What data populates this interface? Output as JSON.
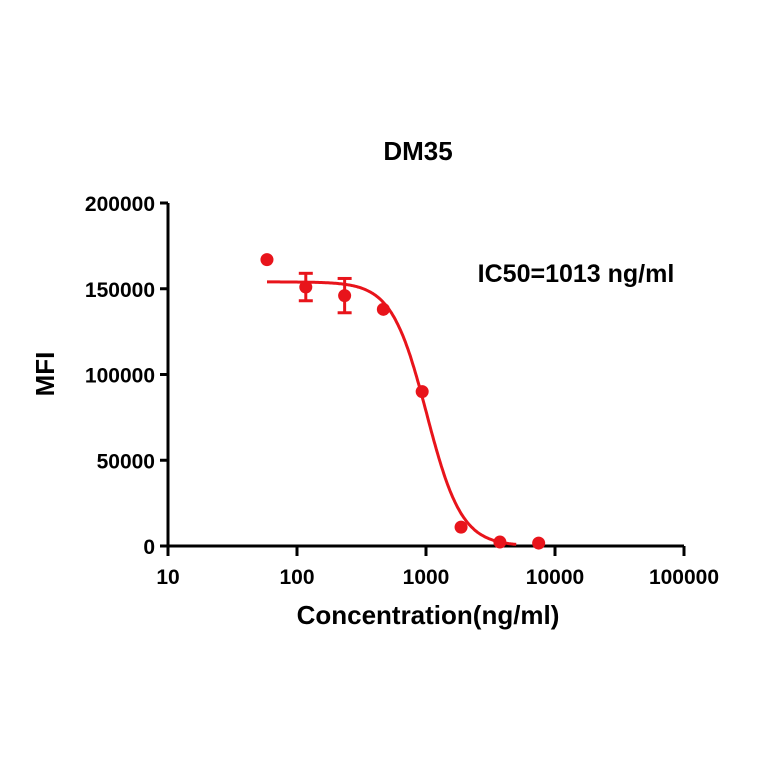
{
  "chart_data": {
    "type": "scatter",
    "title": "DM35",
    "xlabel": "Concentration(ng/ml)",
    "ylabel": "MFI",
    "xscale": "log",
    "xlim": [
      10,
      100000
    ],
    "ylim": [
      0,
      200000
    ],
    "x_ticks": [
      "10",
      "100",
      "1000",
      "10000",
      "100000"
    ],
    "y_ticks": [
      "0",
      "50000",
      "100000",
      "150000",
      "200000"
    ],
    "annotation": "IC50=1013 ng/ml",
    "grid": false,
    "legend": "none",
    "color": "#e8141b",
    "series": [
      {
        "name": "DM35",
        "x": [
          58.5,
          117,
          234,
          467,
          934,
          1870,
          3740,
          7470
        ],
        "y": [
          167000,
          151000,
          146000,
          138000,
          90000,
          11000,
          2300,
          1700
        ],
        "error": [
          0,
          8000,
          10000,
          0,
          0,
          0,
          0,
          0
        ]
      }
    ],
    "fit": {
      "type": "4PL",
      "top": 154000,
      "bottom": 0,
      "ic50": 1013,
      "hill": 3.2
    }
  }
}
